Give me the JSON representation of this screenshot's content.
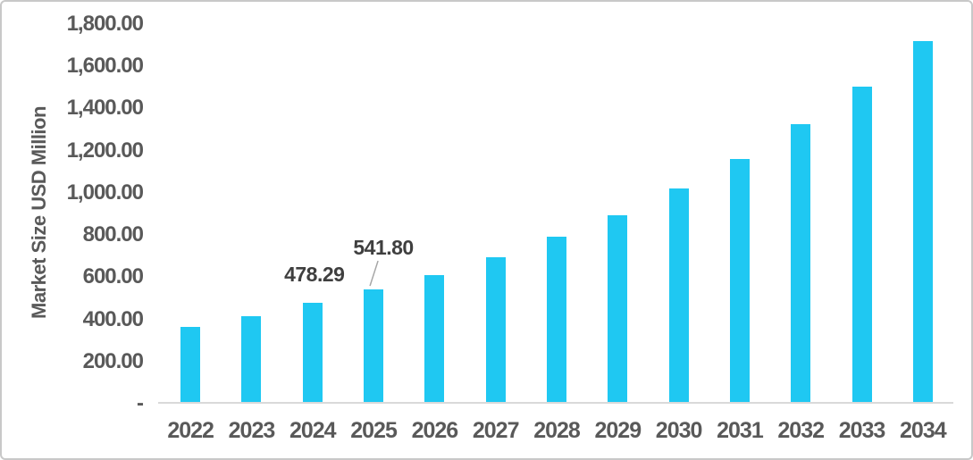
{
  "chart_data": {
    "type": "bar",
    "title": "",
    "xlabel": "",
    "ylabel": "Market Size USD Million",
    "categories": [
      "2022",
      "2023",
      "2024",
      "2025",
      "2026",
      "2027",
      "2028",
      "2029",
      "2030",
      "2031",
      "2032",
      "2033",
      "2034"
    ],
    "values": [
      365,
      416,
      478.29,
      541.8,
      610,
      695,
      790,
      895,
      1020,
      1160,
      1325,
      1505,
      1720
    ],
    "data_labels": [
      {
        "category": "2024",
        "text": "478.29",
        "dx": 2,
        "gap": 20,
        "leader_line": false
      },
      {
        "category": "2025",
        "text": "541.80",
        "dx": 11,
        "gap": 35,
        "leader_line": true
      }
    ],
    "y_ticks": [
      {
        "value": 1800,
        "label": "1,800.00"
      },
      {
        "value": 1600,
        "label": "1,600.00"
      },
      {
        "value": 1400,
        "label": "1,400.00"
      },
      {
        "value": 1200,
        "label": "1,200.00"
      },
      {
        "value": 1000,
        "label": "1,000.00"
      },
      {
        "value": 800,
        "label": "800.00"
      },
      {
        "value": 600,
        "label": "600.00"
      },
      {
        "value": 400,
        "label": "400.00"
      },
      {
        "value": 200,
        "label": "200.00"
      },
      {
        "value": 0,
        "label": "-"
      }
    ],
    "ylim": [
      0,
      1800
    ],
    "grid": false,
    "legend": false,
    "bar_color": "#1FC8F2",
    "colors": {
      "tick_text": "#595959",
      "axis_title_text": "#595959",
      "data_label_text": "#3F3F3F",
      "axis_line": "#D9D9D9",
      "leader_line": "#A6A6A6",
      "frame_border": "#C8C8C8",
      "background": "#FFFFFF"
    }
  }
}
